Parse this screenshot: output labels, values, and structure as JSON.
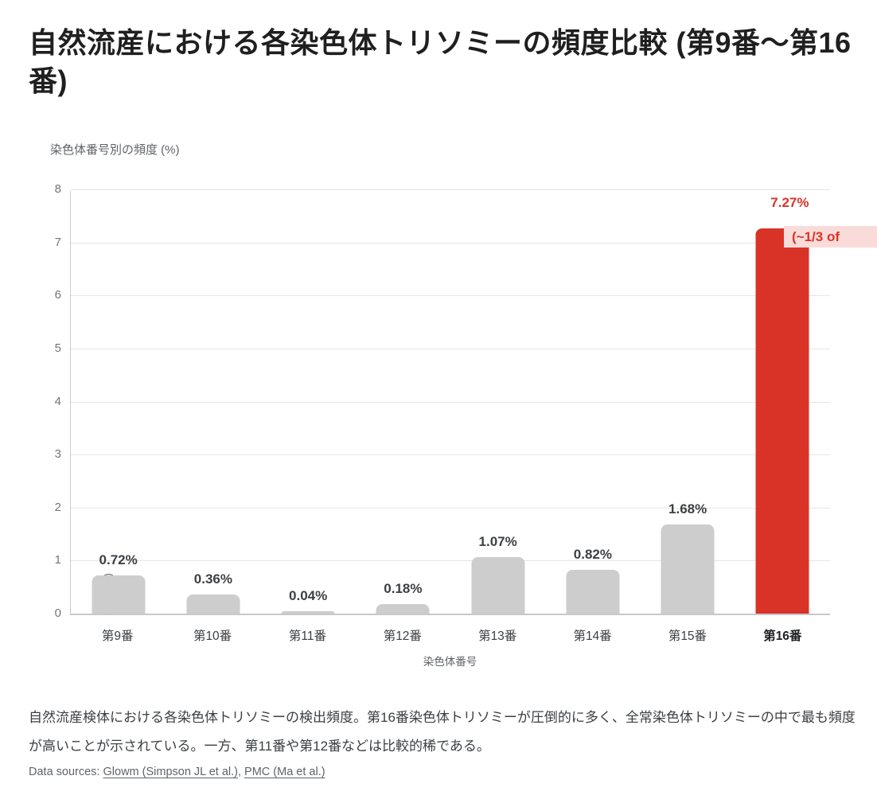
{
  "page": {
    "title": "自然流産における各染色体トリソミーの頻度比較 (第9番～第16番)",
    "subtitle": "染色体番号別の頻度 (%)",
    "caption": "自然流産検体における各染色体トリソミーの検出頻度。第16番染色体トリソミーが圧倒的に多く、全常染色体トリソミーの中で最も頻度が高いことが示されている。一方、第11番や第12番などは比較的稀である。",
    "sources": {
      "prefix": "Data sources: ",
      "separator": ", ",
      "links": [
        {
          "label": "Glowm (Simpson JL et al.)"
        },
        {
          "label": "PMC (Ma et al.)"
        }
      ]
    }
  },
  "chart_data": {
    "type": "bar",
    "title": "染色体番号別の頻度 (%)",
    "categories": [
      "第9番",
      "第10番",
      "第11番",
      "第12番",
      "第13番",
      "第14番",
      "第15番",
      "第16番"
    ],
    "values": [
      0.72,
      0.36,
      0.04,
      0.18,
      1.07,
      0.82,
      1.68,
      7.27
    ],
    "value_labels": [
      "0.72%",
      "0.36%",
      "0.04%",
      "0.18%",
      "1.07%",
      "0.82%",
      "1.68%",
      "7.27%"
    ],
    "xlabel": "染色体番号",
    "ylabel": "頻度 (%)",
    "ylim": [
      0,
      8
    ],
    "ytick_step": 1,
    "grid": true,
    "legend": false,
    "highlight_index": 7,
    "highlight_annotation": "(~1/3 of",
    "colors": {
      "bar": "#cdcdcd",
      "highlight": "#d93328",
      "annotation_bg": "#f9dcd9",
      "annotation_text": "#d93328"
    }
  }
}
